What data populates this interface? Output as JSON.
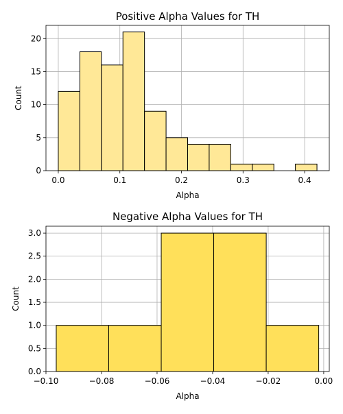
{
  "chart_data": [
    {
      "type": "bar",
      "title": "Positive Alpha Values for TH",
      "xlabel": "Alpha",
      "ylabel": "Count",
      "xlim": [
        -0.02,
        0.44
      ],
      "ylim": [
        0,
        22
      ],
      "xticks": [
        0.0,
        0.1,
        0.2,
        0.3,
        0.4
      ],
      "xtick_labels": [
        "0.0",
        "0.1",
        "0.2",
        "0.3",
        "0.4"
      ],
      "yticks": [
        0,
        5,
        10,
        15,
        20
      ],
      "ytick_labels": [
        "0",
        "5",
        "10",
        "15",
        "20"
      ],
      "grid": true,
      "bar_color": "#ffe897",
      "edge_color": "#000000",
      "bins": [
        {
          "x0": 0.0,
          "x1": 0.035,
          "value": 12
        },
        {
          "x0": 0.035,
          "x1": 0.07,
          "value": 18
        },
        {
          "x0": 0.07,
          "x1": 0.105,
          "value": 16
        },
        {
          "x0": 0.105,
          "x1": 0.14,
          "value": 21
        },
        {
          "x0": 0.14,
          "x1": 0.175,
          "value": 9
        },
        {
          "x0": 0.175,
          "x1": 0.21,
          "value": 5
        },
        {
          "x0": 0.21,
          "x1": 0.245,
          "value": 4
        },
        {
          "x0": 0.245,
          "x1": 0.28,
          "value": 4
        },
        {
          "x0": 0.28,
          "x1": 0.315,
          "value": 1
        },
        {
          "x0": 0.315,
          "x1": 0.35,
          "value": 1
        },
        {
          "x0": 0.35,
          "x1": 0.385,
          "value": 0
        },
        {
          "x0": 0.385,
          "x1": 0.42,
          "value": 1
        }
      ]
    },
    {
      "type": "bar",
      "title": "Negative Alpha Values for TH",
      "xlabel": "Alpha",
      "ylabel": "Count",
      "xlim": [
        -0.1,
        0.002
      ],
      "ylim": [
        0,
        3.15
      ],
      "xticks": [
        -0.1,
        -0.08,
        -0.06,
        -0.04,
        -0.02,
        0.0
      ],
      "xtick_labels": [
        "−0.10",
        "−0.08",
        "−0.06",
        "−0.04",
        "−0.02",
        "0.00"
      ],
      "yticks": [
        0.0,
        0.5,
        1.0,
        1.5,
        2.0,
        2.5,
        3.0
      ],
      "ytick_labels": [
        "0.0",
        "0.5",
        "1.0",
        "1.5",
        "2.0",
        "2.5",
        "3.0"
      ],
      "grid": true,
      "bar_color": "#ffe05a",
      "edge_color": "#000000",
      "bins": [
        {
          "x0": -0.0963,
          "x1": -0.0774,
          "value": 1
        },
        {
          "x0": -0.0774,
          "x1": -0.0585,
          "value": 1
        },
        {
          "x0": -0.0585,
          "x1": -0.0396,
          "value": 3
        },
        {
          "x0": -0.0396,
          "x1": -0.0207,
          "value": 3
        },
        {
          "x0": -0.0207,
          "x1": -0.0018,
          "value": 1
        }
      ]
    }
  ]
}
